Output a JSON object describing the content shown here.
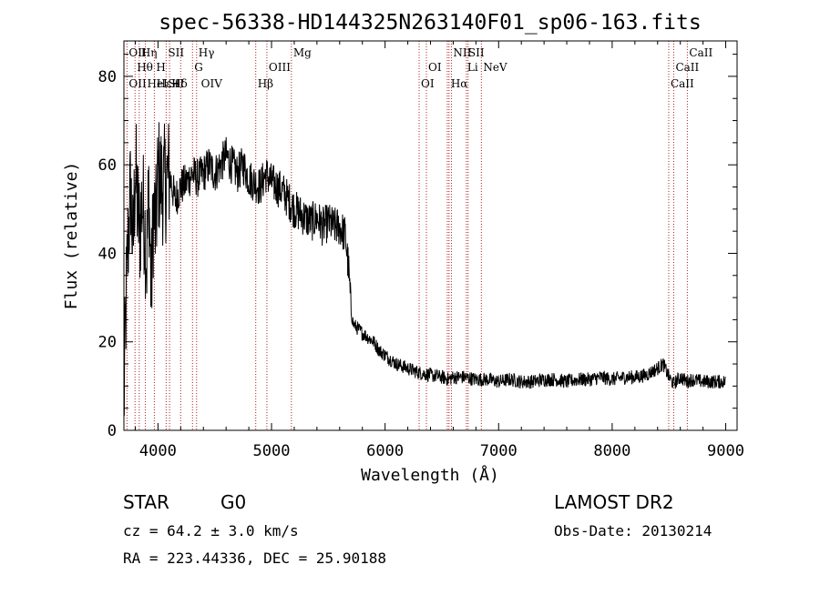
{
  "chart_data": {
    "type": "line",
    "title": "spec-56338-HD144325N263140F01_sp06-163.fits",
    "xlabel": "Wavelength (Å)",
    "ylabel": "Flux (relative)",
    "xlim": [
      3700,
      9100
    ],
    "ylim": [
      0,
      88
    ],
    "x_ticks": [
      "4000",
      "5000",
      "6000",
      "7000",
      "8000",
      "9000"
    ],
    "y_ticks": [
      "0",
      "20",
      "40",
      "60",
      "80"
    ],
    "grid": false,
    "series": [
      {
        "x": [
          3700,
          3720,
          3740,
          3760,
          3780,
          3800,
          3820,
          3840,
          3860,
          3880,
          3900,
          3920,
          3940,
          3960,
          3980,
          4000,
          4050,
          4100,
          4150,
          4200,
          4250,
          4300,
          4350,
          4400,
          4450,
          4500,
          4550,
          4600,
          4650,
          4700,
          4750,
          4800,
          4850,
          4900,
          4950,
          5000,
          5050,
          5100,
          5150,
          5200,
          5250,
          5300,
          5350,
          5400,
          5450,
          5500,
          5550,
          5600,
          5650,
          5680,
          5700,
          5720,
          5760,
          5800,
          5850,
          5900,
          5950,
          6000,
          6050,
          6100,
          6150,
          6200,
          6250,
          6300,
          6400,
          6500,
          6560,
          6600,
          6700,
          6800,
          6900,
          7000,
          7100,
          7200,
          7300,
          7400,
          7500,
          7600,
          7700,
          7800,
          7900,
          8000,
          8100,
          8200,
          8300,
          8400,
          8450,
          8500,
          8540,
          8600,
          8660,
          8700,
          8800,
          8900,
          9000
        ],
        "y": [
          5,
          30,
          45,
          55,
          40,
          60,
          50,
          45,
          52,
          48,
          38,
          55,
          30,
          50,
          45,
          58,
          55,
          58,
          52,
          55,
          56,
          58,
          57,
          58,
          60,
          58,
          60,
          62,
          60,
          58,
          60,
          57,
          56,
          55,
          58,
          56,
          55,
          54,
          52,
          50,
          49,
          48,
          47,
          48,
          46,
          47,
          46,
          46,
          44,
          36,
          27,
          24,
          23,
          22,
          21,
          20,
          18,
          17,
          16,
          15,
          14.5,
          14,
          13.5,
          13,
          12.5,
          12,
          11.5,
          12,
          12,
          11.5,
          11.5,
          11,
          11.5,
          11,
          11,
          11.5,
          11.5,
          11,
          11.5,
          11.5,
          12,
          11.5,
          12,
          12,
          12.5,
          14,
          15,
          12,
          10.5,
          12,
          11,
          11.5,
          11,
          11,
          11
        ]
      }
    ],
    "lines_top": [
      {
        "label": "OII",
        "wl": 3727
      },
      {
        "label": "Hη",
        "wl": 3835
      },
      {
        "label": "SII",
        "wl": 4072
      },
      {
        "label": "Hγ",
        "wl": 4340
      },
      {
        "label": "Mg",
        "wl": 5175
      },
      {
        "label": "NII",
        "wl": 6584
      },
      {
        "label": "SII",
        "wl": 6716
      },
      {
        "label": "CaII",
        "wl": 8662
      }
    ],
    "lines_mid": [
      {
        "label": "Hθ",
        "wl": 3798
      },
      {
        "label": "H",
        "wl": 3968
      },
      {
        "label": "G",
        "wl": 4304
      },
      {
        "label": "OIII",
        "wl": 4959
      },
      {
        "label": "OI",
        "wl": 6364
      },
      {
        "label": "Li",
        "wl": 6708
      },
      {
        "label": "NeV",
        "wl": 6848
      },
      {
        "label": "CaII",
        "wl": 8542
      }
    ],
    "lines_low": [
      {
        "label": "OII",
        "wl": 3727
      },
      {
        "label": "HeI",
        "wl": 3889
      },
      {
        "label": "SII",
        "wl": 4072
      },
      {
        "label": "Hδ",
        "wl": 4102
      },
      {
        "label": "Hε+",
        "wl": 3970
      },
      {
        "label": "OIV",
        "wl": 4363
      },
      {
        "label": "Hβ",
        "wl": 4861
      },
      {
        "label": "OI",
        "wl": 6300
      },
      {
        "label": "Hα",
        "wl": 6563
      },
      {
        "label": "CaII",
        "wl": 8498
      }
    ],
    "line_markers_wl": [
      3727,
      3798,
      3835,
      3889,
      3968,
      4072,
      4102,
      4200,
      4304,
      4340,
      4861,
      4959,
      5175,
      6300,
      6364,
      6548,
      6563,
      6584,
      6716,
      6731,
      6848,
      8498,
      8542,
      8662
    ]
  },
  "info": {
    "class": "STAR",
    "subclass": "G0",
    "survey": "LAMOST DR2",
    "cz": "cz = 64.2 ± 3.0 km/s",
    "obs_date": "Obs-Date: 20130214",
    "radec": "RA = 223.44336, DEC =  25.90188"
  }
}
